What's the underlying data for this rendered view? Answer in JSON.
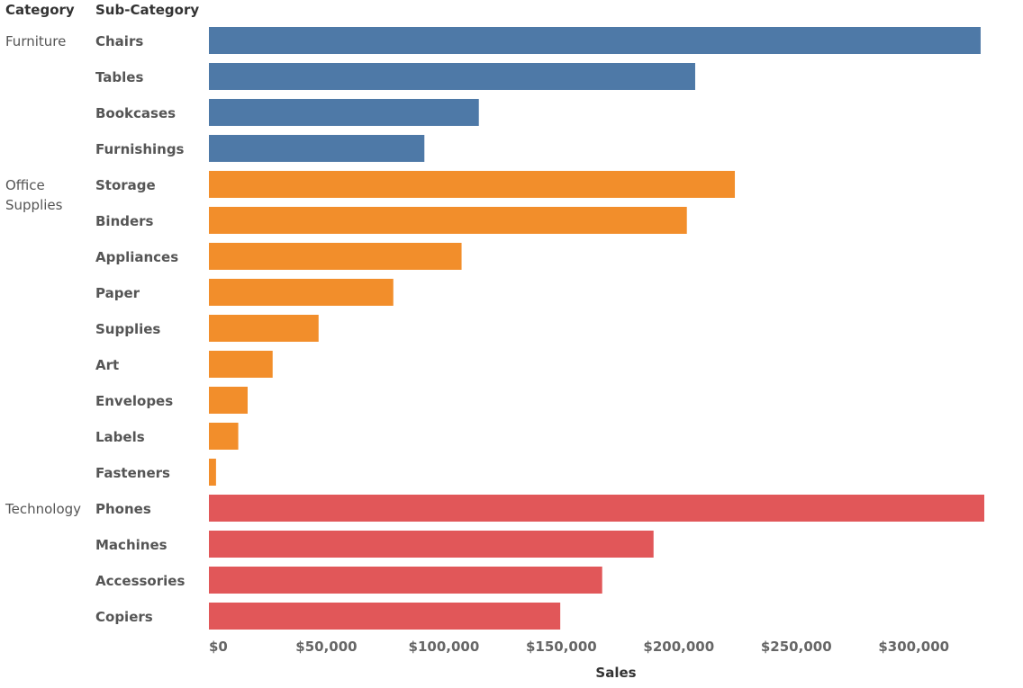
{
  "chart_data": {
    "type": "bar",
    "orientation": "horizontal",
    "row_headers": [
      "Category",
      "Sub-Category"
    ],
    "xlabel": "Sales",
    "xlim": [
      0,
      330000
    ],
    "x_ticks": [
      0,
      50000,
      100000,
      150000,
      200000,
      250000,
      300000
    ],
    "x_tick_labels": [
      "$0",
      "$50,000",
      "$100,000",
      "$150,000",
      "$200,000",
      "$250,000",
      "$300,000"
    ],
    "grid": false,
    "legend": "none",
    "groups": [
      {
        "category": "Furniture",
        "category_label": [
          "Furniture"
        ],
        "color": "#4e79a7",
        "bars": [
          {
            "sub_category": "Chairs",
            "value": 328449
          },
          {
            "sub_category": "Tables",
            "value": 206966
          },
          {
            "sub_category": "Bookcases",
            "value": 114880
          },
          {
            "sub_category": "Furnishings",
            "value": 91705
          }
        ]
      },
      {
        "category": "Office Supplies",
        "category_label": [
          "Office",
          "Supplies"
        ],
        "color": "#f28e2b",
        "bars": [
          {
            "sub_category": "Storage",
            "value": 223844
          },
          {
            "sub_category": "Binders",
            "value": 203413
          },
          {
            "sub_category": "Appliances",
            "value": 107532
          },
          {
            "sub_category": "Paper",
            "value": 78479
          },
          {
            "sub_category": "Supplies",
            "value": 46674
          },
          {
            "sub_category": "Art",
            "value": 27119
          },
          {
            "sub_category": "Envelopes",
            "value": 16476
          },
          {
            "sub_category": "Labels",
            "value": 12486
          },
          {
            "sub_category": "Fasteners",
            "value": 3024
          }
        ]
      },
      {
        "category": "Technology",
        "category_label": [
          "Technology"
        ],
        "color": "#e15759",
        "bars": [
          {
            "sub_category": "Phones",
            "value": 330007
          },
          {
            "sub_category": "Machines",
            "value": 189239
          },
          {
            "sub_category": "Accessories",
            "value": 167380
          },
          {
            "sub_category": "Copiers",
            "value": 149528
          }
        ]
      }
    ]
  }
}
